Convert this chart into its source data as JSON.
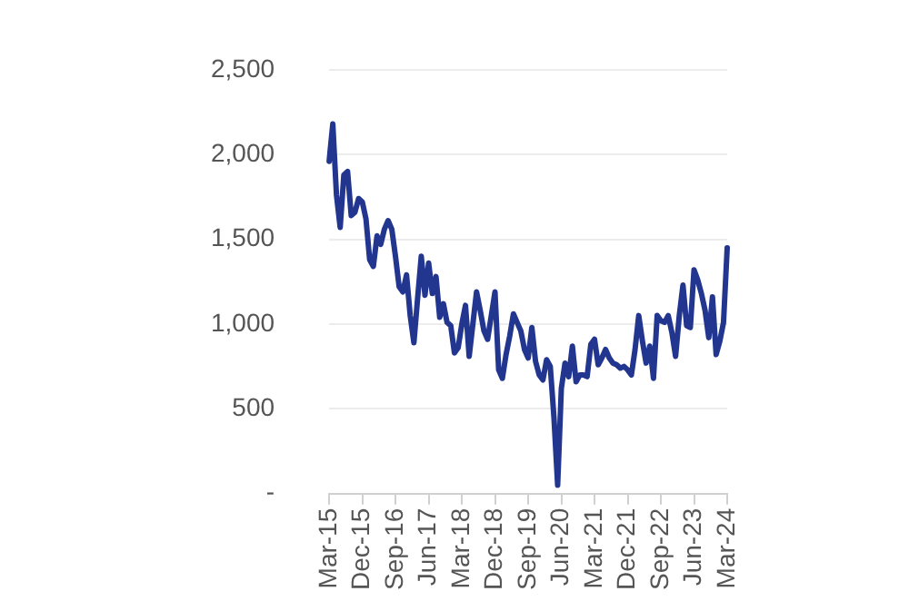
{
  "chart_data": {
    "type": "line",
    "categories": [
      "Mar-15",
      null,
      null,
      null,
      null,
      null,
      null,
      null,
      null,
      "Dec-15",
      null,
      null,
      null,
      null,
      null,
      null,
      null,
      null,
      "Sep-16",
      null,
      null,
      null,
      null,
      null,
      null,
      null,
      null,
      "Jun-17",
      null,
      null,
      null,
      null,
      null,
      null,
      null,
      null,
      "Mar-18",
      null,
      null,
      null,
      null,
      null,
      null,
      null,
      null,
      "Dec-18",
      null,
      null,
      null,
      null,
      null,
      null,
      null,
      null,
      "Sep-19",
      null,
      null,
      null,
      null,
      null,
      null,
      null,
      null,
      "Jun-20",
      null,
      null,
      null,
      null,
      null,
      null,
      null,
      null,
      "Mar-21",
      null,
      null,
      null,
      null,
      null,
      null,
      null,
      null,
      "Dec-21",
      null,
      null,
      null,
      null,
      null,
      null,
      null,
      null,
      "Sep-22",
      null,
      null,
      null,
      null,
      null,
      null,
      null,
      null,
      "Jun-23",
      null,
      null,
      null,
      null,
      null,
      null,
      null,
      null,
      "Mar-24"
    ],
    "series": [
      {
        "color": "#22368f",
        "values": [
          1960,
          2180,
          1760,
          1570,
          1880,
          1900,
          1640,
          1660,
          1740,
          1720,
          1620,
          1380,
          1340,
          1520,
          1470,
          1560,
          1610,
          1560,
          1400,
          1220,
          1190,
          1290,
          1050,
          890,
          1150,
          1400,
          1170,
          1360,
          1180,
          1280,
          1040,
          1120,
          1010,
          990,
          830,
          860,
          1000,
          1110,
          810,
          1000,
          1190,
          1080,
          960,
          910,
          1050,
          1190,
          730,
          680,
          820,
          930,
          1060,
          1010,
          960,
          850,
          800,
          980,
          780,
          700,
          670,
          790,
          750,
          450,
          50,
          620,
          770,
          690,
          870,
          660,
          700,
          700,
          690,
          880,
          910,
          760,
          800,
          850,
          800,
          770,
          760,
          740,
          750,
          730,
          700,
          850,
          1050,
          900,
          770,
          870,
          680,
          1050,
          1020,
          1010,
          1050,
          950,
          810,
          1050,
          1230,
          990,
          980,
          1320,
          1260,
          1180,
          1080,
          920,
          1160,
          820,
          900,
          1010,
          1450
        ]
      }
    ],
    "ylim": [
      0,
      2500
    ],
    "yticks": [
      {
        "value": 0,
        "label": "-"
      },
      {
        "value": 500,
        "label": "500"
      },
      {
        "value": 1000,
        "label": "1,000"
      },
      {
        "value": 1500,
        "label": "1,500"
      },
      {
        "value": 2000,
        "label": "2,000"
      },
      {
        "value": 2500,
        "label": "2,500"
      }
    ],
    "grid": "y",
    "legend": false,
    "marker": "none",
    "line_style": "solid"
  }
}
